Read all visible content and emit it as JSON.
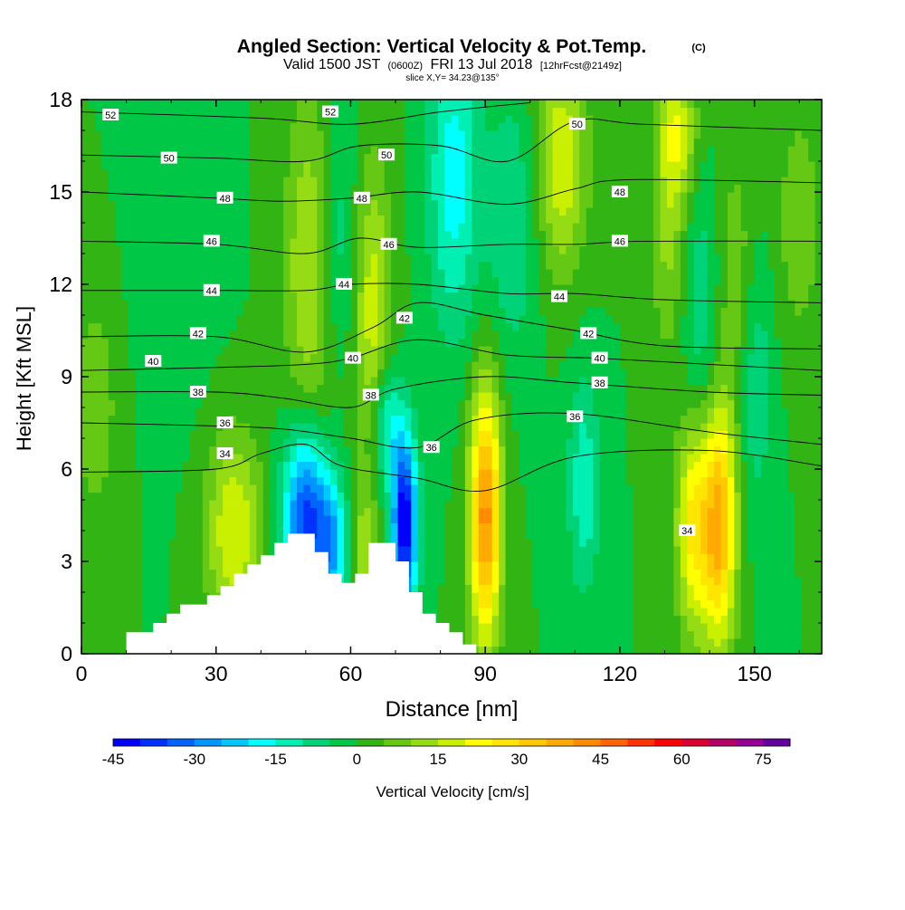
{
  "chart_data": {
    "type": "heatmap",
    "title": "Angled Section: Vertical Velocity & Pot.Temp.",
    "title_unit": "(C)",
    "subtitle_parts": [
      "Valid 1500 JST",
      "(0600Z)",
      "FRI 13 Jul 2018",
      "[12hrFcst@2149z]"
    ],
    "subtitle2": "slice X,Y= 34.23@135°",
    "xlabel": "Distance [nm]",
    "ylabel": "Height [Kft MSL]",
    "xlim": [
      0,
      165
    ],
    "ylim": [
      0,
      18
    ],
    "xticks": [
      0,
      30,
      60,
      90,
      120,
      150
    ],
    "yticks": [
      0,
      3,
      6,
      9,
      12,
      15,
      18
    ],
    "colorbar": {
      "label": "Vertical Velocity [cm/s]",
      "levels": [
        -45,
        -40,
        -35,
        -30,
        -25,
        -20,
        -15,
        -10,
        -5,
        0,
        5,
        10,
        15,
        20,
        25,
        30,
        35,
        40,
        45,
        50,
        55,
        60,
        65,
        70,
        75,
        80
      ],
      "tick_labels": [
        "-45",
        "-30",
        "-15",
        "0",
        "15",
        "30",
        "45",
        "60",
        "75"
      ],
      "tick_values": [
        -45,
        -30,
        -15,
        0,
        15,
        30,
        45,
        60,
        75
      ],
      "colors": [
        "#0000ff",
        "#0032ff",
        "#0064ff",
        "#0096ff",
        "#00c8ff",
        "#00ffff",
        "#00f0b4",
        "#00d278",
        "#00c846",
        "#32b414",
        "#64c814",
        "#96dc14",
        "#c8f000",
        "#ffff00",
        "#ffe600",
        "#ffc800",
        "#ffaa00",
        "#ff8c00",
        "#ff6400",
        "#ff3200",
        "#ff0000",
        "#dc0032",
        "#b40064",
        "#960096",
        "#6400a0"
      ]
    },
    "background_level": 0,
    "velocity_features": [
      {
        "x": 50,
        "z": 4.5,
        "sx": 3.5,
        "sz": 2.0,
        "w": -38
      },
      {
        "x": 56,
        "z": 3.5,
        "sx": 2.5,
        "sz": 1.5,
        "w": -22
      },
      {
        "x": 72,
        "z": 4.2,
        "sx": 2.0,
        "sz": 2.0,
        "w": -46
      },
      {
        "x": 68,
        "z": 7.5,
        "sx": 2.5,
        "sz": 1.5,
        "w": -18
      },
      {
        "x": 90,
        "z": 4.5,
        "sx": 2.5,
        "sz": 3.0,
        "w": 42
      },
      {
        "x": 136,
        "z": 4.2,
        "sx": 2.5,
        "sz": 2.5,
        "w": 24
      },
      {
        "x": 142,
        "z": 4.2,
        "sx": 2.8,
        "sz": 2.8,
        "w": 38
      },
      {
        "x": 112,
        "z": 5.5,
        "sx": 2.5,
        "sz": 2.5,
        "w": -14
      },
      {
        "x": 34,
        "z": 4.0,
        "sx": 4.5,
        "sz": 2.2,
        "w": 20
      },
      {
        "x": 63,
        "z": 3.2,
        "sx": 2.0,
        "sz": 1.5,
        "w": 14
      },
      {
        "x": 51,
        "z": 12.5,
        "sx": 4.0,
        "sz": 4.0,
        "w": 16
      },
      {
        "x": 65,
        "z": 11.0,
        "sx": 3.0,
        "sz": 3.5,
        "w": 18
      },
      {
        "x": 57,
        "z": 13.5,
        "sx": 3.0,
        "sz": 3.0,
        "w": -10
      },
      {
        "x": 83,
        "z": 15.5,
        "sx": 4.0,
        "sz": 3.5,
        "w": -18
      },
      {
        "x": 96,
        "z": 14.0,
        "sx": 4.0,
        "sz": 3.0,
        "w": -10
      },
      {
        "x": 107,
        "z": 16.0,
        "sx": 4.0,
        "sz": 2.5,
        "w": 20
      },
      {
        "x": 131,
        "z": 14.0,
        "sx": 3.0,
        "sz": 3.0,
        "w": 12
      },
      {
        "x": 133,
        "z": 17.0,
        "sx": 3.0,
        "sz": 1.5,
        "w": 16
      },
      {
        "x": 146,
        "z": 12.0,
        "sx": 3.0,
        "sz": 3.0,
        "w": 10
      },
      {
        "x": 138,
        "z": 11.0,
        "sx": 3.0,
        "sz": 3.0,
        "w": -10
      },
      {
        "x": 150,
        "z": 9.0,
        "sx": 3.0,
        "sz": 3.0,
        "w": -10
      },
      {
        "x": 20,
        "z": 14.0,
        "sx": 6.0,
        "sz": 4.0,
        "w": -5
      },
      {
        "x": 3,
        "z": 8.0,
        "sx": 4.0,
        "sz": 3.0,
        "w": 8
      },
      {
        "x": 160,
        "z": 14.0,
        "sx": 4.0,
        "sz": 3.0,
        "w": 8
      }
    ],
    "terrain": [
      [
        10,
        0
      ],
      [
        10,
        0.7
      ],
      [
        16,
        0.7
      ],
      [
        16,
        1.0
      ],
      [
        19,
        1.0
      ],
      [
        19,
        1.3
      ],
      [
        22,
        1.3
      ],
      [
        22,
        1.6
      ],
      [
        28,
        1.6
      ],
      [
        28,
        1.9
      ],
      [
        31,
        1.9
      ],
      [
        31,
        2.2
      ],
      [
        34,
        2.2
      ],
      [
        34,
        2.6
      ],
      [
        37,
        2.6
      ],
      [
        37,
        2.9
      ],
      [
        40,
        2.9
      ],
      [
        40,
        3.2
      ],
      [
        43,
        3.2
      ],
      [
        43,
        3.6
      ],
      [
        46,
        3.6
      ],
      [
        46,
        3.9
      ],
      [
        52,
        3.9
      ],
      [
        52,
        3.3
      ],
      [
        55,
        3.3
      ],
      [
        55,
        2.6
      ],
      [
        58,
        2.6
      ],
      [
        58,
        2.3
      ],
      [
        61,
        2.3
      ],
      [
        61,
        2.6
      ],
      [
        64,
        2.6
      ],
      [
        64,
        3.6
      ],
      [
        70,
        3.6
      ],
      [
        70,
        3.0
      ],
      [
        73,
        3.0
      ],
      [
        73,
        2.0
      ],
      [
        76,
        2.0
      ],
      [
        76,
        1.3
      ],
      [
        79,
        1.3
      ],
      [
        79,
        1.0
      ],
      [
        82,
        1.0
      ],
      [
        82,
        0.7
      ],
      [
        85,
        0.7
      ],
      [
        85,
        0.3
      ],
      [
        88,
        0.3
      ],
      [
        88,
        0
      ]
    ],
    "isentropes": [
      {
        "theta": 52,
        "pts": [
          [
            0,
            17.6
          ],
          [
            40,
            17.4
          ],
          [
            60,
            17.2
          ],
          [
            80,
            17.6
          ],
          [
            100,
            17.9
          ]
        ]
      },
      {
        "theta": 50,
        "pts": [
          [
            0,
            16.2
          ],
          [
            30,
            16.1
          ],
          [
            50,
            16.0
          ],
          [
            62,
            16.5
          ],
          [
            80,
            16.5
          ],
          [
            95,
            16.0
          ],
          [
            110,
            17.3
          ],
          [
            125,
            17.2
          ],
          [
            165,
            17.0
          ]
        ]
      },
      {
        "theta": 48,
        "pts": [
          [
            0,
            15.0
          ],
          [
            30,
            14.8
          ],
          [
            45,
            14.7
          ],
          [
            60,
            14.8
          ],
          [
            75,
            15.0
          ],
          [
            95,
            14.6
          ],
          [
            110,
            15.1
          ],
          [
            122,
            15.4
          ],
          [
            165,
            15.3
          ]
        ]
      },
      {
        "theta": 46,
        "pts": [
          [
            0,
            13.4
          ],
          [
            30,
            13.3
          ],
          [
            50,
            13.0
          ],
          [
            62,
            13.5
          ],
          [
            75,
            13.2
          ],
          [
            95,
            13.3
          ],
          [
            110,
            13.3
          ],
          [
            125,
            13.4
          ],
          [
            165,
            13.4
          ]
        ]
      },
      {
        "theta": 44,
        "pts": [
          [
            0,
            11.8
          ],
          [
            30,
            11.8
          ],
          [
            50,
            11.8
          ],
          [
            60,
            12.0
          ],
          [
            75,
            12.0
          ],
          [
            95,
            11.7
          ],
          [
            110,
            11.7
          ],
          [
            130,
            11.5
          ],
          [
            165,
            11.4
          ]
        ]
      },
      {
        "theta": 42,
        "pts": [
          [
            0,
            10.3
          ],
          [
            30,
            10.3
          ],
          [
            50,
            9.8
          ],
          [
            65,
            10.6
          ],
          [
            75,
            11.4
          ],
          [
            90,
            11.0
          ],
          [
            110,
            10.5
          ],
          [
            130,
            10.0
          ],
          [
            165,
            9.9
          ]
        ]
      },
      {
        "theta": 40,
        "pts": [
          [
            0,
            9.2
          ],
          [
            30,
            9.3
          ],
          [
            50,
            9.4
          ],
          [
            60,
            9.6
          ],
          [
            75,
            10.2
          ],
          [
            95,
            9.7
          ],
          [
            115,
            9.6
          ],
          [
            140,
            9.4
          ],
          [
            165,
            9.2
          ]
        ]
      },
      {
        "theta": 38,
        "pts": [
          [
            0,
            8.5
          ],
          [
            30,
            8.5
          ],
          [
            45,
            8.3
          ],
          [
            60,
            8.0
          ],
          [
            70,
            8.6
          ],
          [
            90,
            9.0
          ],
          [
            110,
            8.8
          ],
          [
            140,
            8.5
          ],
          [
            165,
            8.4
          ]
        ]
      },
      {
        "theta": 36,
        "pts": [
          [
            0,
            7.5
          ],
          [
            30,
            7.4
          ],
          [
            45,
            7.3
          ],
          [
            60,
            7.0
          ],
          [
            75,
            6.7
          ],
          [
            88,
            7.6
          ],
          [
            110,
            7.8
          ],
          [
            140,
            7.2
          ],
          [
            165,
            6.8
          ]
        ]
      },
      {
        "theta": 34,
        "pts": [
          [
            0,
            5.9
          ],
          [
            30,
            6.0
          ],
          [
            40,
            6.5
          ],
          [
            50,
            6.8
          ],
          [
            58,
            6.1
          ],
          [
            75,
            5.7
          ],
          [
            90,
            5.3
          ],
          [
            110,
            6.4
          ],
          [
            140,
            6.6
          ],
          [
            165,
            6.1
          ]
        ]
      }
    ],
    "isentrope_labels": [
      {
        "text": "52",
        "x": 6.5,
        "z": 17.5
      },
      {
        "text": "52",
        "x": 55.5,
        "z": 17.6
      },
      {
        "text": "50",
        "x": 19.5,
        "z": 16.1
      },
      {
        "text": "50",
        "x": 68,
        "z": 16.2
      },
      {
        "text": "50",
        "x": 110.5,
        "z": 17.2
      },
      {
        "text": "48",
        "x": 32,
        "z": 14.8
      },
      {
        "text": "48",
        "x": 62.5,
        "z": 14.8
      },
      {
        "text": "48",
        "x": 120,
        "z": 15.0
      },
      {
        "text": "46",
        "x": 29,
        "z": 13.4
      },
      {
        "text": "46",
        "x": 68.5,
        "z": 13.3
      },
      {
        "text": "46",
        "x": 120,
        "z": 13.4
      },
      {
        "text": "44",
        "x": 29,
        "z": 11.8
      },
      {
        "text": "44",
        "x": 58.5,
        "z": 12.0
      },
      {
        "text": "44",
        "x": 106.5,
        "z": 11.6
      },
      {
        "text": "42",
        "x": 26,
        "z": 10.4
      },
      {
        "text": "42",
        "x": 72,
        "z": 10.9
      },
      {
        "text": "42",
        "x": 113,
        "z": 10.4
      },
      {
        "text": "40",
        "x": 16,
        "z": 9.5
      },
      {
        "text": "40",
        "x": 60.5,
        "z": 9.6
      },
      {
        "text": "40",
        "x": 115.5,
        "z": 9.6
      },
      {
        "text": "38",
        "x": 26,
        "z": 8.5
      },
      {
        "text": "38",
        "x": 64.5,
        "z": 8.4
      },
      {
        "text": "38",
        "x": 115.5,
        "z": 8.8
      },
      {
        "text": "36",
        "x": 32,
        "z": 7.5
      },
      {
        "text": "36",
        "x": 78,
        "z": 6.7
      },
      {
        "text": "36",
        "x": 110,
        "z": 7.7
      },
      {
        "text": "34",
        "x": 32,
        "z": 6.5
      },
      {
        "text": "34",
        "x": 135,
        "z": 4.0
      }
    ]
  }
}
